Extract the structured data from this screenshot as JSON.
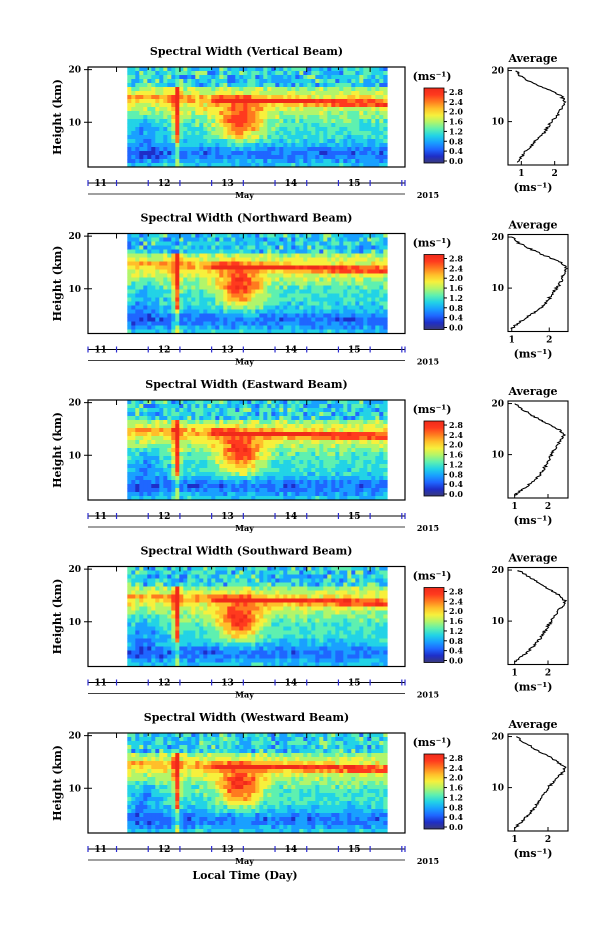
{
  "figure": {
    "xlabel": "Local Time (Day)",
    "month": "May",
    "year": "2015",
    "ylabel": "Height (km)",
    "avg_title": "Average",
    "unit": "(ms⁻¹)",
    "colorbar_ticks": [
      "0.0",
      "0.4",
      "0.8",
      "1.2",
      "1.6",
      "2.0",
      "2.4",
      "2.8"
    ]
  },
  "colors": {
    "colormap": [
      "#3a3a7a",
      "#1e2ec8",
      "#1f66ff",
      "#19a0ff",
      "#22d3e6",
      "#5ef0b0",
      "#b2f56a",
      "#f7f03c",
      "#ffbf2a",
      "#ff7a1f",
      "#ff3a1e",
      "#f02a1a"
    ],
    "day_marker": "#2b2bd0"
  },
  "chart_data": [
    {
      "type": "heatmap",
      "title": "Spectral Width (Vertical Beam)",
      "x_ticks": [
        "11",
        "12",
        "13",
        "14",
        "15"
      ],
      "y_ticks": [
        "10",
        "20"
      ],
      "xlim": [
        10.55,
        15.55
      ],
      "ylim": [
        1.5,
        20.5
      ],
      "data_range_x": [
        11.17,
        15.22
      ],
      "colorbar_range": [
        0.0,
        3.0
      ],
      "average_profile": {
        "xlabel": "(ms⁻¹)",
        "x_ticks": [
          "1",
          "2"
        ],
        "y_ticks": [
          "10",
          "20"
        ],
        "xlim": [
          0.6,
          2.4
        ],
        "height": [
          2,
          3,
          4,
          5,
          6,
          7,
          8,
          9,
          10,
          11,
          12,
          13,
          14,
          15,
          16,
          17,
          18,
          19,
          20
        ],
        "width": [
          0.9,
          1.0,
          1.1,
          1.25,
          1.4,
          1.55,
          1.7,
          1.8,
          1.9,
          2.05,
          2.15,
          2.25,
          2.3,
          2.2,
          1.9,
          1.55,
          1.2,
          0.95,
          0.85
        ]
      }
    },
    {
      "type": "heatmap",
      "title": "Spectral Width (Northward Beam)",
      "x_ticks": [
        "11",
        "12",
        "13",
        "14",
        "15"
      ],
      "y_ticks": [
        "10",
        "20"
      ],
      "xlim": [
        10.55,
        15.55
      ],
      "ylim": [
        1.5,
        20.5
      ],
      "data_range_x": [
        11.17,
        15.22
      ],
      "colorbar_range": [
        0.0,
        3.0
      ],
      "average_profile": {
        "xlabel": "(ms⁻¹)",
        "x_ticks": [
          "1",
          "2"
        ],
        "y_ticks": [
          "10",
          "20"
        ],
        "xlim": [
          0.9,
          2.5
        ],
        "height": [
          2,
          3,
          4,
          5,
          6,
          7,
          8,
          9,
          10,
          11,
          12,
          13,
          14,
          15,
          16,
          17,
          18,
          19,
          20
        ],
        "width": [
          1.0,
          1.15,
          1.35,
          1.55,
          1.75,
          1.9,
          2.0,
          2.1,
          2.2,
          2.3,
          2.35,
          2.4,
          2.45,
          2.3,
          2.0,
          1.7,
          1.4,
          1.15,
          1.0
        ]
      }
    },
    {
      "type": "heatmap",
      "title": "Spectral Width (Eastward Beam)",
      "x_ticks": [
        "11",
        "12",
        "13",
        "14",
        "15"
      ],
      "y_ticks": [
        "10",
        "20"
      ],
      "xlim": [
        10.55,
        15.55
      ],
      "ylim": [
        1.5,
        20.5
      ],
      "data_range_x": [
        11.17,
        15.22
      ],
      "colorbar_range": [
        0.0,
        3.0
      ],
      "average_profile": {
        "xlabel": "(ms⁻¹)",
        "x_ticks": [
          "1",
          "2"
        ],
        "y_ticks": [
          "10",
          "20"
        ],
        "xlim": [
          0.8,
          2.6
        ],
        "height": [
          2,
          3,
          4,
          5,
          6,
          7,
          8,
          9,
          10,
          11,
          12,
          13,
          14,
          15,
          16,
          17,
          18,
          19,
          20
        ],
        "width": [
          1.0,
          1.2,
          1.4,
          1.6,
          1.75,
          1.85,
          1.95,
          2.05,
          2.1,
          2.2,
          2.3,
          2.4,
          2.5,
          2.3,
          2.0,
          1.7,
          1.45,
          1.2,
          1.0
        ]
      }
    },
    {
      "type": "heatmap",
      "title": "Spectral Width (Southward Beam)",
      "x_ticks": [
        "11",
        "12",
        "13",
        "14",
        "15"
      ],
      "y_ticks": [
        "10",
        "20"
      ],
      "xlim": [
        10.55,
        15.55
      ],
      "ylim": [
        1.5,
        20.5
      ],
      "data_range_x": [
        11.17,
        15.22
      ],
      "colorbar_range": [
        0.0,
        3.0
      ],
      "average_profile": {
        "xlabel": "(ms⁻¹)",
        "x_ticks": [
          "1",
          "2"
        ],
        "y_ticks": [
          "10",
          "20"
        ],
        "xlim": [
          0.8,
          2.6
        ],
        "height": [
          2,
          3,
          4,
          5,
          6,
          7,
          8,
          9,
          10,
          11,
          12,
          13,
          14,
          15,
          16,
          17,
          18,
          19,
          20
        ],
        "width": [
          1.0,
          1.2,
          1.4,
          1.55,
          1.7,
          1.8,
          1.9,
          2.0,
          2.1,
          2.2,
          2.3,
          2.45,
          2.5,
          2.35,
          2.1,
          1.85,
          1.6,
          1.35,
          1.1
        ]
      }
    },
    {
      "type": "heatmap",
      "title": "Spectral Width (Westward Beam)",
      "x_ticks": [
        "11",
        "12",
        "13",
        "14",
        "15"
      ],
      "y_ticks": [
        "10",
        "20"
      ],
      "xlim": [
        10.55,
        15.55
      ],
      "ylim": [
        1.5,
        20.5
      ],
      "data_range_x": [
        11.17,
        15.22
      ],
      "colorbar_range": [
        0.0,
        3.0
      ],
      "average_profile": {
        "xlabel": "(ms⁻¹)",
        "x_ticks": [
          "1",
          "2"
        ],
        "y_ticks": [
          "10",
          "20"
        ],
        "xlim": [
          0.8,
          2.6
        ],
        "height": [
          2,
          3,
          4,
          5,
          6,
          7,
          8,
          9,
          10,
          11,
          12,
          13,
          14,
          15,
          16,
          17,
          18,
          19,
          20
        ],
        "width": [
          1.0,
          1.15,
          1.3,
          1.45,
          1.6,
          1.7,
          1.8,
          1.9,
          2.0,
          2.15,
          2.3,
          2.45,
          2.5,
          2.3,
          2.05,
          1.75,
          1.5,
          1.25,
          1.05
        ]
      }
    }
  ]
}
